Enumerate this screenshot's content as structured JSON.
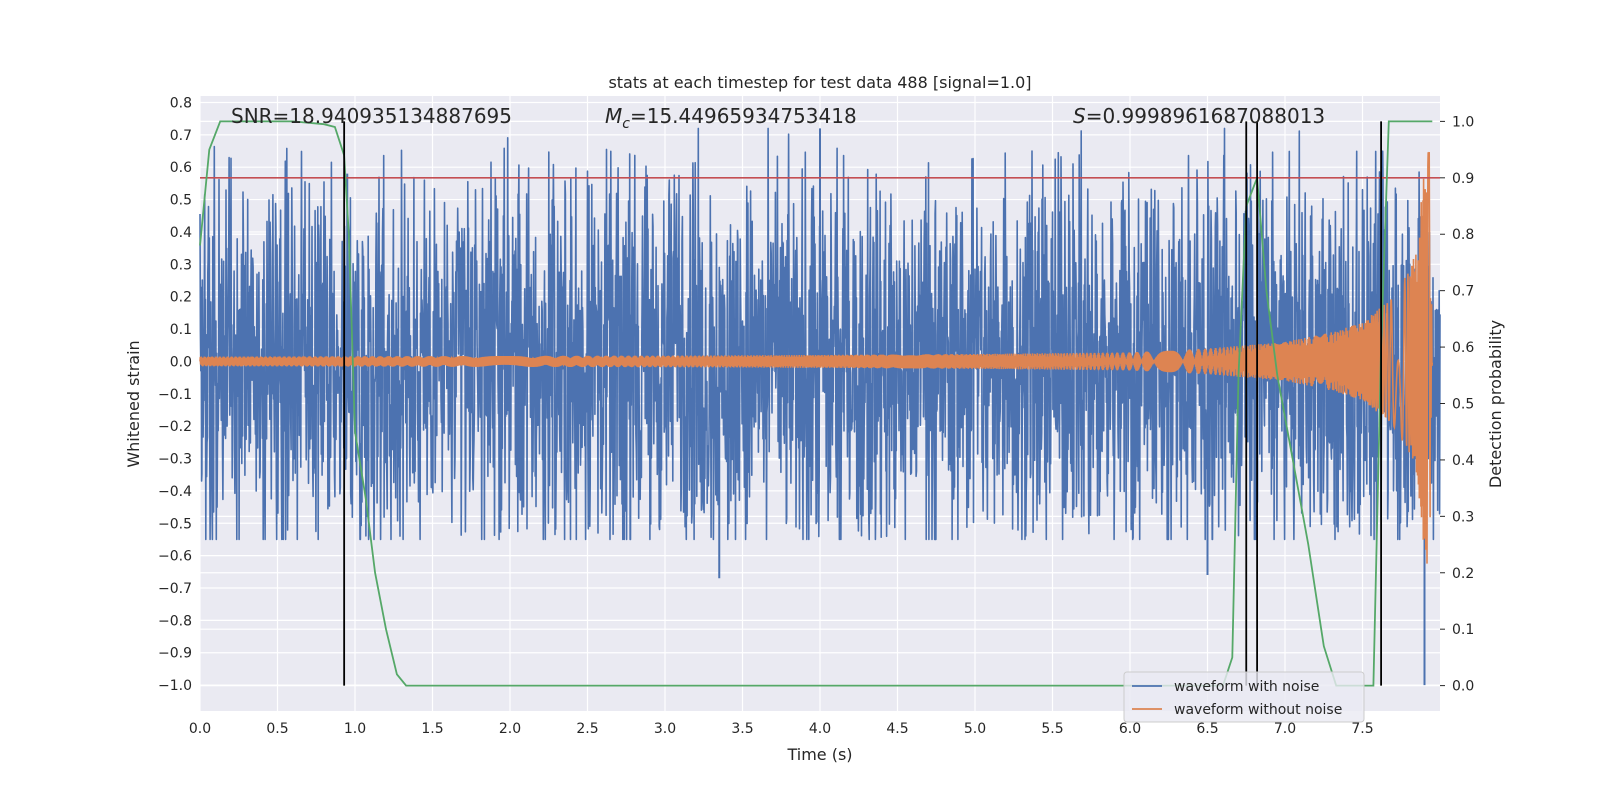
{
  "chart_data": {
    "type": "line",
    "title": "stats at each timestep for test data 488 [signal=1.0]",
    "xlabel": "Time (s)",
    "ylabel_left": "Whitened strain",
    "ylabel_right": "Detection probability",
    "xlim": [
      0.0,
      8.0
    ],
    "ylim_left": [
      -1.08,
      0.82
    ],
    "ylim_right": [
      -0.045,
      1.045
    ],
    "xticks": [
      "0.0",
      "0.5",
      "1.0",
      "1.5",
      "2.0",
      "2.5",
      "3.0",
      "3.5",
      "4.0",
      "4.5",
      "5.0",
      "5.5",
      "6.0",
      "6.5",
      "7.0",
      "7.5"
    ],
    "yticks_left": [
      "0.8",
      "0.7",
      "0.6",
      "0.5",
      "0.4",
      "0.3",
      "0.2",
      "0.1",
      "0.0",
      "−0.1",
      "−0.2",
      "−0.3",
      "−0.4",
      "−0.5",
      "−0.6",
      "−0.7",
      "−0.8",
      "−0.9",
      "−1.0"
    ],
    "yticks_right": [
      "1.0",
      "0.9",
      "0.8",
      "0.7",
      "0.6",
      "0.5",
      "0.4",
      "0.3",
      "0.2",
      "0.1",
      "0.0"
    ],
    "annotations": {
      "snr": "SNR=18.940935134887695",
      "mc_symbol": "M",
      "mc_sub": "c",
      "mc_value": "=15.44965934753418",
      "s_symbol": "S",
      "s_value": "=0.9998961687088013"
    },
    "series": [
      {
        "name": "waveform with noise",
        "color": "#4c72b0",
        "axis": "left",
        "envelope": {
          "x": [
            0.0,
            8.0
          ],
          "typical_abs": 0.3,
          "peak_max": 0.72,
          "peak_min": -1.0
        }
      },
      {
        "name": "waveform without noise",
        "color": "#dd8452",
        "axis": "left",
        "envelope": {
          "x": [
            0.0,
            1.0,
            2.0,
            3.0,
            4.0,
            5.0,
            6.0,
            6.5,
            7.0,
            7.3,
            7.5,
            7.7,
            7.8,
            7.85,
            7.9,
            7.93,
            7.95
          ],
          "amp": [
            0.015,
            0.016,
            0.017,
            0.018,
            0.02,
            0.023,
            0.028,
            0.04,
            0.06,
            0.09,
            0.12,
            0.2,
            0.28,
            0.35,
            0.6,
            0.66,
            0.1
          ]
        }
      },
      {
        "name": "",
        "color": "#55a868",
        "axis": "right",
        "x": [
          0.0,
          0.06,
          0.13,
          0.2,
          0.4,
          0.6,
          0.8,
          0.87,
          0.93,
          0.96,
          1.0,
          1.07,
          1.13,
          1.2,
          1.27,
          1.33,
          1.4,
          6.6,
          6.66,
          6.7,
          6.75,
          6.82,
          6.88,
          6.95,
          7.05,
          7.15,
          7.25,
          7.33,
          7.45,
          7.57,
          7.62,
          7.67,
          7.75,
          7.95
        ],
        "values": [
          0.78,
          0.95,
          1.0,
          1.0,
          1.0,
          1.0,
          0.995,
          0.99,
          0.94,
          0.8,
          0.45,
          0.33,
          0.2,
          0.1,
          0.02,
          0.0,
          0.0,
          0.0,
          0.05,
          0.55,
          0.85,
          0.9,
          0.7,
          0.55,
          0.4,
          0.25,
          0.07,
          0.0,
          0.0,
          0.0,
          0.6,
          1.0,
          1.0,
          1.0
        ]
      }
    ],
    "hlines": [
      {
        "y_right": 0.9,
        "color": "#c44e52"
      }
    ],
    "vlines": [
      {
        "x": 0.93,
        "y_right": [
          0.0,
          1.0
        ]
      },
      {
        "x": 6.75,
        "y_right": [
          0.0,
          1.0
        ]
      },
      {
        "x": 6.82,
        "y_right": [
          0.0,
          1.0
        ]
      },
      {
        "x": 7.62,
        "y_right": [
          0.0,
          1.0
        ]
      }
    ],
    "legend": {
      "position": "lower-right",
      "entries": [
        "waveform with noise",
        "waveform without noise"
      ]
    },
    "grid": true
  }
}
